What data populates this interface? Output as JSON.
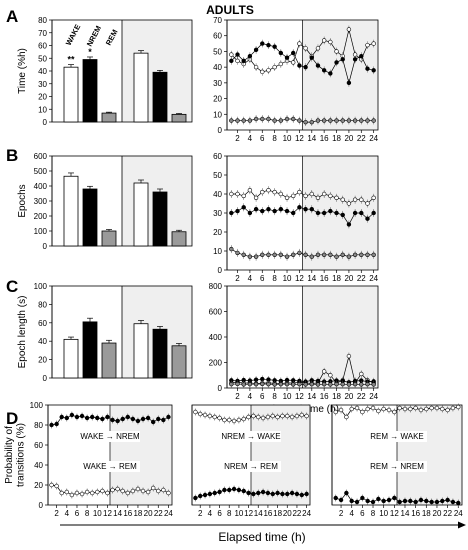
{
  "figure": {
    "title": "ADULTS",
    "bottom_axis_label": "Elapsed time (h)"
  },
  "legend": {
    "wake": "WAKE",
    "nrem": "NREM",
    "rem": "REM"
  },
  "chart_data": [
    {
      "id": "A-bar",
      "panel_letter": "A",
      "type": "bar",
      "ylabel": "Time (%h)",
      "ylim": [
        0,
        80
      ],
      "yticks": [
        0,
        10,
        20,
        30,
        40,
        50,
        60,
        70,
        80
      ],
      "groups": [
        "light",
        "dark"
      ],
      "dark_shaded": true,
      "series": [
        {
          "name": "WAKE",
          "values": [
            43,
            54
          ],
          "errors": [
            2,
            2
          ],
          "marks": [
            "**",
            ""
          ]
        },
        {
          "name": "NREM",
          "values": [
            49,
            39
          ],
          "errors": [
            2,
            1.5
          ],
          "marks": [
            "*",
            ""
          ]
        },
        {
          "name": "REM",
          "values": [
            7,
            6
          ],
          "errors": [
            0.7,
            0.7
          ],
          "marks": [
            "",
            ""
          ]
        }
      ]
    },
    {
      "id": "A-line",
      "type": "line",
      "ylim": [
        0,
        70
      ],
      "yticks": [
        0,
        10,
        20,
        30,
        40,
        50,
        60,
        70
      ],
      "x": [
        1,
        2,
        3,
        4,
        5,
        6,
        7,
        8,
        9,
        10,
        11,
        12,
        13,
        14,
        15,
        16,
        17,
        18,
        19,
        20,
        21,
        22,
        23,
        24
      ],
      "xticks": [
        2,
        4,
        6,
        8,
        10,
        12,
        14,
        16,
        18,
        20,
        22,
        24
      ],
      "xlabel": "",
      "dark_start": 12.5,
      "series": [
        {
          "name": "WAKE",
          "values": [
            48,
            44,
            42,
            45,
            40,
            37,
            38,
            40,
            42,
            44,
            43,
            55,
            52,
            47,
            52,
            57,
            56,
            50,
            47,
            64,
            48,
            45,
            54,
            55
          ]
        },
        {
          "name": "NREM",
          "values": [
            44,
            48,
            44,
            47,
            51,
            55,
            54,
            53,
            49,
            46,
            49,
            41,
            40,
            46,
            41,
            38,
            36,
            43,
            45,
            30,
            45,
            47,
            39,
            38
          ]
        },
        {
          "name": "REM",
          "values": [
            6,
            6,
            6,
            6,
            7,
            7,
            7,
            6,
            6,
            7,
            7,
            6,
            5,
            5,
            6,
            6,
            6,
            6,
            6,
            6,
            6,
            6,
            6,
            6
          ]
        }
      ]
    },
    {
      "id": "B-bar",
      "panel_letter": "B",
      "type": "bar",
      "ylabel": "Epochs",
      "ylim": [
        0,
        600
      ],
      "yticks": [
        0,
        100,
        200,
        300,
        400,
        500,
        600
      ],
      "groups": [
        "light",
        "dark"
      ],
      "dark_shaded": true,
      "series": [
        {
          "name": "WAKE",
          "values": [
            465,
            420
          ],
          "errors": [
            22,
            20
          ]
        },
        {
          "name": "NREM",
          "values": [
            380,
            360
          ],
          "errors": [
            18,
            20
          ]
        },
        {
          "name": "REM",
          "values": [
            100,
            95
          ],
          "errors": [
            10,
            10
          ]
        }
      ]
    },
    {
      "id": "B-line",
      "type": "line",
      "ylim": [
        0,
        60
      ],
      "yticks": [
        0,
        10,
        20,
        30,
        40,
        50,
        60
      ],
      "x": [
        1,
        2,
        3,
        4,
        5,
        6,
        7,
        8,
        9,
        10,
        11,
        12,
        13,
        14,
        15,
        16,
        17,
        18,
        19,
        20,
        21,
        22,
        23,
        24
      ],
      "xticks": [
        2,
        4,
        6,
        8,
        10,
        12,
        14,
        16,
        18,
        20,
        22,
        24
      ],
      "xlabel": "",
      "dark_start": 12.5,
      "series": [
        {
          "name": "WAKE",
          "values": [
            40,
            40,
            39,
            42,
            38,
            41,
            42,
            41,
            40,
            38,
            39,
            41,
            39,
            40,
            38,
            40,
            39,
            38,
            37,
            35,
            37,
            37,
            35,
            38
          ]
        },
        {
          "name": "NREM",
          "values": [
            30,
            31,
            33,
            30,
            32,
            31,
            32,
            31,
            32,
            31,
            30,
            33,
            32,
            32,
            30,
            30,
            31,
            30,
            29,
            24,
            30,
            30,
            27,
            30
          ]
        },
        {
          "name": "REM",
          "values": [
            11,
            9,
            8,
            7,
            7,
            8,
            8,
            8,
            8,
            7,
            8,
            9,
            8,
            7,
            8,
            8,
            8,
            7,
            8,
            7,
            8,
            8,
            8,
            8
          ]
        }
      ]
    },
    {
      "id": "C-bar",
      "panel_letter": "C",
      "type": "bar",
      "ylabel": "Epoch length (s)",
      "ylim": [
        0,
        100
      ],
      "yticks": [
        0,
        20,
        40,
        60,
        80,
        100
      ],
      "groups": [
        "light",
        "dark"
      ],
      "dark_shaded": true,
      "series": [
        {
          "name": "WAKE",
          "values": [
            42,
            59
          ],
          "errors": [
            2.5,
            3.5
          ]
        },
        {
          "name": "NREM",
          "values": [
            61,
            53
          ],
          "errors": [
            4,
            3
          ]
        },
        {
          "name": "REM",
          "values": [
            38,
            35
          ],
          "errors": [
            3,
            2.5
          ]
        }
      ]
    },
    {
      "id": "C-line",
      "type": "line",
      "ylim": [
        0,
        800
      ],
      "yticks": [
        0,
        200,
        400,
        600,
        800
      ],
      "x": [
        1,
        2,
        3,
        4,
        5,
        6,
        7,
        8,
        9,
        10,
        11,
        12,
        13,
        14,
        15,
        16,
        17,
        18,
        19,
        20,
        21,
        22,
        23,
        24
      ],
      "xticks": [
        2,
        4,
        6,
        8,
        10,
        12,
        14,
        16,
        18,
        20,
        22,
        24
      ],
      "xlabel": "Elapsed time (h)",
      "dark_start": 12.5,
      "series": [
        {
          "name": "WAKE",
          "values": [
            40,
            45,
            38,
            40,
            35,
            38,
            40,
            36,
            35,
            40,
            38,
            45,
            40,
            35,
            40,
            130,
            100,
            40,
            60,
            250,
            40,
            110,
            60,
            40
          ]
        },
        {
          "name": "NREM",
          "values": [
            60,
            55,
            62,
            58,
            65,
            70,
            66,
            60,
            55,
            62,
            60,
            55,
            50,
            60,
            55,
            50,
            52,
            58,
            55,
            45,
            55,
            58,
            50,
            52
          ]
        },
        {
          "name": "REM",
          "values": [
            30,
            32,
            28,
            30,
            30,
            32,
            30,
            28,
            30,
            30,
            28,
            30,
            28,
            30,
            28,
            30,
            28,
            30,
            30,
            28,
            30,
            28,
            30,
            28
          ]
        }
      ]
    },
    {
      "id": "D1",
      "panel_letter": "D",
      "type": "line",
      "ylabel": "Probability of transitions (%)",
      "ylim": [
        0,
        100
      ],
      "yticks": [
        0,
        20,
        40,
        60,
        80,
        100
      ],
      "x": [
        1,
        2,
        3,
        4,
        5,
        6,
        7,
        8,
        9,
        10,
        11,
        12,
        13,
        14,
        15,
        16,
        17,
        18,
        19,
        20,
        21,
        22,
        23,
        24
      ],
      "xticks": [
        2,
        4,
        6,
        8,
        10,
        12,
        14,
        16,
        18,
        20,
        22,
        24
      ],
      "dark_start": 12.5,
      "upper_label": "WAKE → NREM",
      "lower_label": "WAKE → REM",
      "series": [
        {
          "name": "WAKE → NREM",
          "marker": "filled",
          "values": [
            80,
            81,
            88,
            87,
            90,
            88,
            89,
            87,
            88,
            87,
            86,
            88,
            85,
            84,
            86,
            88,
            86,
            84,
            86,
            87,
            83,
            86,
            85,
            88
          ]
        },
        {
          "name": "WAKE → REM",
          "marker": "open",
          "values": [
            20,
            19,
            12,
            13,
            10,
            12,
            11,
            13,
            12,
            13,
            14,
            12,
            15,
            16,
            14,
            12,
            14,
            16,
            14,
            13,
            17,
            14,
            15,
            12
          ]
        }
      ]
    },
    {
      "id": "D2",
      "type": "line",
      "ylim": [
        0,
        100
      ],
      "yticks": [],
      "x": [
        1,
        2,
        3,
        4,
        5,
        6,
        7,
        8,
        9,
        10,
        11,
        12,
        13,
        14,
        15,
        16,
        17,
        18,
        19,
        20,
        21,
        22,
        23,
        24
      ],
      "xticks": [
        2,
        4,
        6,
        8,
        10,
        12,
        14,
        16,
        18,
        20,
        22,
        24
      ],
      "dark_start": 12.5,
      "upper_label": "NREM → WAKE",
      "lower_label": "NREM → REM",
      "series": [
        {
          "name": "NREM → WAKE",
          "marker": "open",
          "values": [
            93,
            91,
            90,
            89,
            88,
            87,
            85,
            85,
            84,
            85,
            86,
            88,
            89,
            88,
            87,
            88,
            89,
            88,
            89,
            89,
            88,
            89,
            90,
            89
          ]
        },
        {
          "name": "NREM → REM",
          "marker": "filled",
          "values": [
            7,
            9,
            10,
            11,
            12,
            13,
            15,
            15,
            16,
            15,
            14,
            12,
            11,
            12,
            13,
            12,
            11,
            12,
            11,
            11,
            12,
            11,
            10,
            11
          ]
        }
      ]
    },
    {
      "id": "D3",
      "type": "line",
      "ylim": [
        0,
        100
      ],
      "yticks": [],
      "x": [
        1,
        2,
        3,
        4,
        5,
        6,
        7,
        8,
        9,
        10,
        11,
        12,
        13,
        14,
        15,
        16,
        17,
        18,
        19,
        20,
        21,
        22,
        23,
        24
      ],
      "xticks": [
        2,
        4,
        6,
        8,
        10,
        12,
        14,
        16,
        18,
        20,
        22,
        24
      ],
      "dark_start": 12.5,
      "upper_label": "REM → WAKE",
      "lower_label": "REM → NREM",
      "series": [
        {
          "name": "REM → WAKE",
          "marker": "open",
          "values": [
            93,
            95,
            88,
            96,
            97,
            93,
            96,
            97,
            94,
            96,
            95,
            93,
            97,
            96,
            96,
            97,
            95,
            96,
            97,
            97,
            96,
            95,
            97,
            98
          ]
        },
        {
          "name": "REM → NREM",
          "marker": "filled",
          "values": [
            7,
            5,
            12,
            4,
            3,
            7,
            4,
            3,
            6,
            4,
            5,
            7,
            3,
            4,
            4,
            3,
            5,
            4,
            3,
            3,
            4,
            5,
            3,
            2
          ]
        }
      ]
    }
  ]
}
